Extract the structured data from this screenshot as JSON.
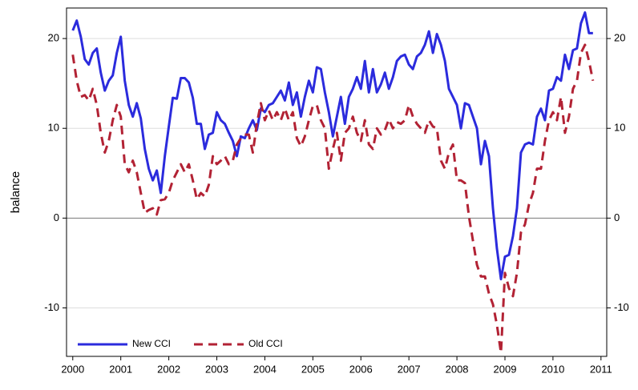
{
  "chart_data": {
    "type": "line",
    "y_label": "balance",
    "xlim": [
      1999.87,
      2011.12
    ],
    "ylim": [
      -15.4,
      23.4
    ],
    "xticks": [
      2000,
      2001,
      2002,
      2003,
      2004,
      2005,
      2006,
      2007,
      2008,
      2009,
      2010,
      2011
    ],
    "yticks": [
      -10,
      0,
      10,
      20
    ],
    "y2ticks": [
      -10,
      0,
      10,
      20
    ],
    "grid": true,
    "legend": "bottom-left",
    "x": [
      2000,
      2000.083,
      2000.167,
      2000.25,
      2000.333,
      2000.417,
      2000.5,
      2000.583,
      2000.667,
      2000.75,
      2000.833,
      2000.917,
      2001,
      2001.083,
      2001.167,
      2001.25,
      2001.333,
      2001.417,
      2001.5,
      2001.583,
      2001.667,
      2001.75,
      2001.833,
      2001.917,
      2002,
      2002.083,
      2002.167,
      2002.25,
      2002.333,
      2002.417,
      2002.5,
      2002.583,
      2002.667,
      2002.75,
      2002.833,
      2002.917,
      2003,
      2003.083,
      2003.167,
      2003.25,
      2003.333,
      2003.417,
      2003.5,
      2003.583,
      2003.667,
      2003.75,
      2003.833,
      2003.917,
      2004,
      2004.083,
      2004.167,
      2004.25,
      2004.333,
      2004.417,
      2004.5,
      2004.583,
      2004.667,
      2004.75,
      2004.833,
      2004.917,
      2005,
      2005.083,
      2005.167,
      2005.25,
      2005.333,
      2005.417,
      2005.5,
      2005.583,
      2005.667,
      2005.75,
      2005.833,
      2005.917,
      2006,
      2006.083,
      2006.167,
      2006.25,
      2006.333,
      2006.417,
      2006.5,
      2006.583,
      2006.667,
      2006.75,
      2006.833,
      2006.917,
      2007,
      2007.083,
      2007.167,
      2007.25,
      2007.333,
      2007.417,
      2007.5,
      2007.583,
      2007.667,
      2007.75,
      2007.833,
      2007.917,
      2008,
      2008.083,
      2008.167,
      2008.25,
      2008.333,
      2008.417,
      2008.5,
      2008.583,
      2008.667,
      2008.75,
      2008.833,
      2008.917,
      2009,
      2009.083,
      2009.167,
      2009.25,
      2009.333,
      2009.417,
      2009.5,
      2009.583,
      2009.667,
      2009.75,
      2009.833,
      2009.917,
      2010,
      2010.083,
      2010.167,
      2010.25,
      2010.333,
      2010.417,
      2010.5,
      2010.583,
      2010.667,
      2010.75,
      2010.833
    ],
    "series": [
      {
        "name": "New CCI",
        "color": "#2b2bdd",
        "line_style": "solid",
        "values": [
          20.9,
          22,
          20.2,
          17.7,
          17.1,
          18.4,
          18.9,
          16.2,
          14.2,
          15.3,
          15.9,
          18.4,
          20.2,
          15.3,
          12.6,
          11.3,
          12.8,
          11.1,
          7.7,
          5.5,
          4.2,
          5.3,
          2.8,
          6.9,
          10.2,
          13.4,
          13.3,
          15.6,
          15.6,
          15.1,
          13.4,
          10.5,
          10.5,
          7.7,
          9.3,
          9.5,
          11.8,
          10.9,
          10.5,
          9.5,
          8.6,
          6.9,
          9.1,
          8.9,
          10,
          10.9,
          9.8,
          12.2,
          11.8,
          12.6,
          12.8,
          13.5,
          14.2,
          13.1,
          15.1,
          12.6,
          14,
          11.3,
          13.5,
          15.3,
          14,
          16.8,
          16.6,
          14,
          11.8,
          9.1,
          11.3,
          13.5,
          10.5,
          13.5,
          14.4,
          15.7,
          14.4,
          17.5,
          14,
          16.6,
          14,
          14.9,
          16.2,
          14.4,
          15.7,
          17.5,
          18,
          18.2,
          17.1,
          16.6,
          18,
          18.4,
          19.3,
          20.8,
          18.4,
          20.5,
          19.3,
          17.5,
          14.4,
          13.5,
          12.6,
          10,
          12.8,
          12.6,
          11.3,
          10,
          6,
          8.6,
          6.9,
          1.1,
          -3.4,
          -6.8,
          -4.3,
          -4.1,
          -2,
          1.1,
          7.3,
          8.2,
          8.4,
          8.2,
          11.3,
          12.2,
          10.9,
          14.2,
          14.4,
          15.7,
          15.3,
          18.2,
          16.6,
          18.7,
          18.9,
          21.7,
          22.9,
          20.6,
          20.6
        ]
      },
      {
        "name": "Old CCI",
        "color": "#b22234",
        "line_style": "dashed",
        "values": [
          18.2,
          15.3,
          13.5,
          13.7,
          13.1,
          14.4,
          12.6,
          9.5,
          7.3,
          8.6,
          10.9,
          12.6,
          11.3,
          6,
          5.1,
          6.4,
          5.1,
          2.8,
          0.6,
          0.9,
          1.1,
          0.4,
          2,
          2.1,
          2.8,
          4.2,
          5.1,
          6,
          5.1,
          6,
          4.2,
          2.1,
          2.8,
          2.4,
          3.7,
          6.9,
          6,
          6.4,
          6.9,
          6,
          6.4,
          8.2,
          8.9,
          9.3,
          9.3,
          7.3,
          10.5,
          12.8,
          10.9,
          12,
          10.9,
          11.8,
          10.9,
          12.2,
          10.9,
          11.8,
          8.9,
          8,
          9.1,
          10.9,
          12.5,
          12.6,
          10.9,
          10,
          5.5,
          7.7,
          9.5,
          6.4,
          9.5,
          10,
          11.3,
          9.5,
          8.6,
          10.9,
          8.2,
          7.7,
          10,
          9.3,
          9.8,
          11,
          10,
          10.7,
          10.5,
          10.9,
          12.6,
          11.3,
          10.5,
          10,
          9.5,
          10.9,
          10.2,
          10,
          6.4,
          5.5,
          7.3,
          8.2,
          4.2,
          4.2,
          3.9,
          0.2,
          -2.5,
          -5.2,
          -6.5,
          -6.5,
          -8.4,
          -9.6,
          -11.9,
          -15,
          -6.1,
          -7.8,
          -8.7,
          -6.1,
          -1.6,
          -0.7,
          1.5,
          2.8,
          5.5,
          5.5,
          8.6,
          10.9,
          11.8,
          10.9,
          13.5,
          9.5,
          11.3,
          14.4,
          15.3,
          18.4,
          19.3,
          17.5,
          15.3
        ]
      }
    ]
  }
}
